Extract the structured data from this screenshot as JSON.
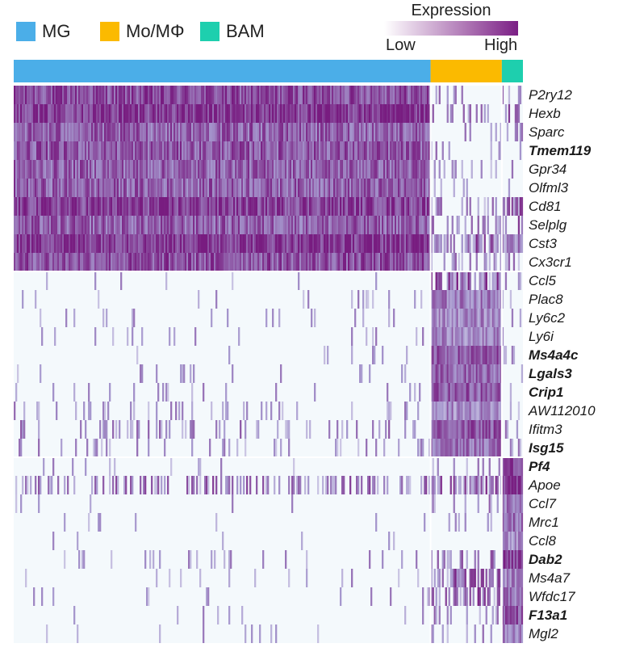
{
  "legend": {
    "items": [
      {
        "label": "MG",
        "color": "#4baee8"
      },
      {
        "label": "Mo/MΦ",
        "color": "#fbba00"
      },
      {
        "label": "BAM",
        "color": "#1ecfae"
      }
    ]
  },
  "colorbar": {
    "title": "Expression",
    "low_label": "Low",
    "high_label": "High",
    "low_color": "#ffffff",
    "high_color": "#7b1f85"
  },
  "chart_data": {
    "type": "heatmap",
    "title": "",
    "groups": [
      {
        "name": "MG",
        "color": "#4baee8",
        "fraction_of_cells": 0.79
      },
      {
        "name": "Mo/MΦ",
        "color": "#fbba00",
        "fraction_of_cells": 0.135
      },
      {
        "name": "BAM",
        "color": "#1ecfae",
        "fraction_of_cells": 0.04
      }
    ],
    "genes": [
      {
        "name": "P2ry12",
        "bold": false,
        "mean_expression": [
          0.8,
          0.12,
          0.15
        ]
      },
      {
        "name": "Hexb",
        "bold": false,
        "mean_expression": [
          0.88,
          0.2,
          0.35
        ]
      },
      {
        "name": "Sparc",
        "bold": false,
        "mean_expression": [
          0.72,
          0.1,
          0.15
        ]
      },
      {
        "name": "Tmem119",
        "bold": true,
        "mean_expression": [
          0.75,
          0.1,
          0.12
        ]
      },
      {
        "name": "Gpr34",
        "bold": false,
        "mean_expression": [
          0.72,
          0.12,
          0.22
        ]
      },
      {
        "name": "Olfml3",
        "bold": false,
        "mean_expression": [
          0.72,
          0.1,
          0.15
        ]
      },
      {
        "name": "Cd81",
        "bold": false,
        "mean_expression": [
          0.85,
          0.15,
          0.35
        ]
      },
      {
        "name": "Selplg",
        "bold": false,
        "mean_expression": [
          0.72,
          0.22,
          0.3
        ]
      },
      {
        "name": "Cst3",
        "bold": false,
        "mean_expression": [
          0.9,
          0.4,
          0.55
        ]
      },
      {
        "name": "Cx3cr1",
        "bold": false,
        "mean_expression": [
          0.78,
          0.18,
          0.3
        ]
      },
      {
        "name": "Ccl5",
        "bold": false,
        "mean_expression": [
          0.03,
          0.5,
          0.05
        ]
      },
      {
        "name": "Plac8",
        "bold": false,
        "mean_expression": [
          0.04,
          0.6,
          0.05
        ]
      },
      {
        "name": "Ly6c2",
        "bold": false,
        "mean_expression": [
          0.05,
          0.55,
          0.05
        ]
      },
      {
        "name": "Ly6i",
        "bold": false,
        "mean_expression": [
          0.05,
          0.55,
          0.05
        ]
      },
      {
        "name": "Ms4a4c",
        "bold": true,
        "mean_expression": [
          0.04,
          0.75,
          0.08
        ]
      },
      {
        "name": "Lgals3",
        "bold": true,
        "mean_expression": [
          0.04,
          0.7,
          0.1
        ]
      },
      {
        "name": "Crip1",
        "bold": true,
        "mean_expression": [
          0.05,
          0.75,
          0.1
        ]
      },
      {
        "name": "AW112010",
        "bold": false,
        "mean_expression": [
          0.1,
          0.55,
          0.1
        ]
      },
      {
        "name": "Ifitm3",
        "bold": false,
        "mean_expression": [
          0.15,
          0.75,
          0.25
        ]
      },
      {
        "name": "Isg15",
        "bold": true,
        "mean_expression": [
          0.08,
          0.65,
          0.12
        ]
      },
      {
        "name": "Pf4",
        "bold": true,
        "mean_expression": [
          0.03,
          0.1,
          0.85
        ]
      },
      {
        "name": "Apoe",
        "bold": false,
        "mean_expression": [
          0.25,
          0.35,
          0.9
        ]
      },
      {
        "name": "Ccl7",
        "bold": false,
        "mean_expression": [
          0.02,
          0.15,
          0.6
        ]
      },
      {
        "name": "Mrc1",
        "bold": false,
        "mean_expression": [
          0.02,
          0.1,
          0.65
        ]
      },
      {
        "name": "Ccl8",
        "bold": false,
        "mean_expression": [
          0.02,
          0.05,
          0.55
        ]
      },
      {
        "name": "Dab2",
        "bold": true,
        "mean_expression": [
          0.06,
          0.25,
          0.85
        ]
      },
      {
        "name": "Ms4a7",
        "bold": false,
        "mean_expression": [
          0.05,
          0.45,
          0.55
        ]
      },
      {
        "name": "Wfdc17",
        "bold": false,
        "mean_expression": [
          0.04,
          0.4,
          0.6
        ]
      },
      {
        "name": "F13a1",
        "bold": true,
        "mean_expression": [
          0.02,
          0.15,
          0.8
        ]
      },
      {
        "name": "Mgl2",
        "bold": false,
        "mean_expression": [
          0.02,
          0.08,
          0.55
        ]
      }
    ],
    "gene_blocks": [
      {
        "group": "MG",
        "genes": [
          "P2ry12",
          "Hexb",
          "Sparc",
          "Tmem119",
          "Gpr34",
          "Olfml3",
          "Cd81",
          "Selplg",
          "Cst3",
          "Cx3cr1"
        ]
      },
      {
        "group": "Mo/MΦ",
        "genes": [
          "Ccl5",
          "Plac8",
          "Ly6c2",
          "Ly6i",
          "Ms4a4c",
          "Lgals3",
          "Crip1",
          "AW112010",
          "Ifitm3",
          "Isg15"
        ]
      },
      {
        "group": "BAM",
        "genes": [
          "Pf4",
          "Apoe",
          "Ccl7",
          "Mrc1",
          "Ccl8",
          "Dab2",
          "Ms4a7",
          "Wfdc17",
          "F13a1",
          "Mgl2"
        ]
      }
    ],
    "color_scale": {
      "low": "Low",
      "high": "High"
    }
  }
}
